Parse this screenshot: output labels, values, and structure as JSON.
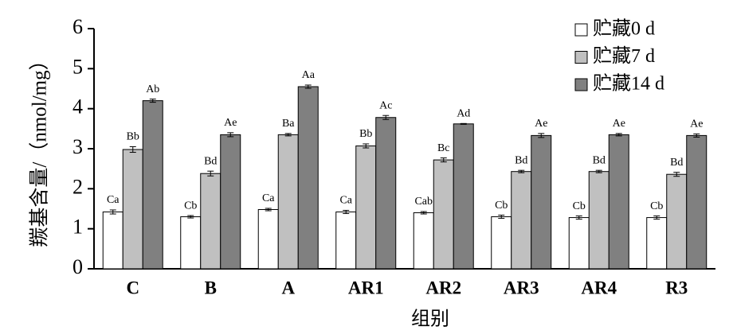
{
  "chart_data": {
    "type": "bar",
    "xlabel": "组别",
    "ylabel": "羰基含量/（nmol/mg）",
    "categories": [
      "C",
      "B",
      "A",
      "AR1",
      "AR2",
      "AR3",
      "AR4",
      "R3"
    ],
    "series": [
      {
        "name": "贮藏0 d",
        "color": "#ffffff",
        "values": [
          1.42,
          1.3,
          1.48,
          1.42,
          1.4,
          1.3,
          1.28,
          1.28
        ],
        "errors": [
          0.05,
          0.03,
          0.03,
          0.04,
          0.03,
          0.04,
          0.04,
          0.04
        ],
        "labels": [
          "Ca",
          "Cb",
          "Ca",
          "Ca",
          "Cab",
          "Cb",
          "Cb",
          "Cb"
        ]
      },
      {
        "name": "贮藏7 d",
        "color": "#c0c0c0",
        "values": [
          2.98,
          2.38,
          3.35,
          3.07,
          2.72,
          2.43,
          2.43,
          2.36
        ],
        "errors": [
          0.07,
          0.06,
          0.03,
          0.05,
          0.05,
          0.03,
          0.03,
          0.05
        ],
        "labels": [
          "Bb",
          "Bd",
          "Ba",
          "Bb",
          "Bc",
          "Bd",
          "Bd",
          "Bd"
        ]
      },
      {
        "name": "贮藏14 d",
        "color": "#808080",
        "values": [
          4.2,
          3.35,
          4.55,
          3.78,
          3.62,
          3.33,
          3.35,
          3.33
        ],
        "errors": [
          0.04,
          0.05,
          0.04,
          0.05,
          0.01,
          0.05,
          0.03,
          0.04
        ],
        "labels": [
          "Ab",
          "Ae",
          "Aa",
          "Ac",
          "Ad",
          "Ae",
          "Ae",
          "Ae"
        ]
      }
    ],
    "ylim": [
      0,
      6
    ],
    "yticks": [
      0,
      1,
      2,
      3,
      4,
      5,
      6
    ],
    "legend": "upper right"
  }
}
